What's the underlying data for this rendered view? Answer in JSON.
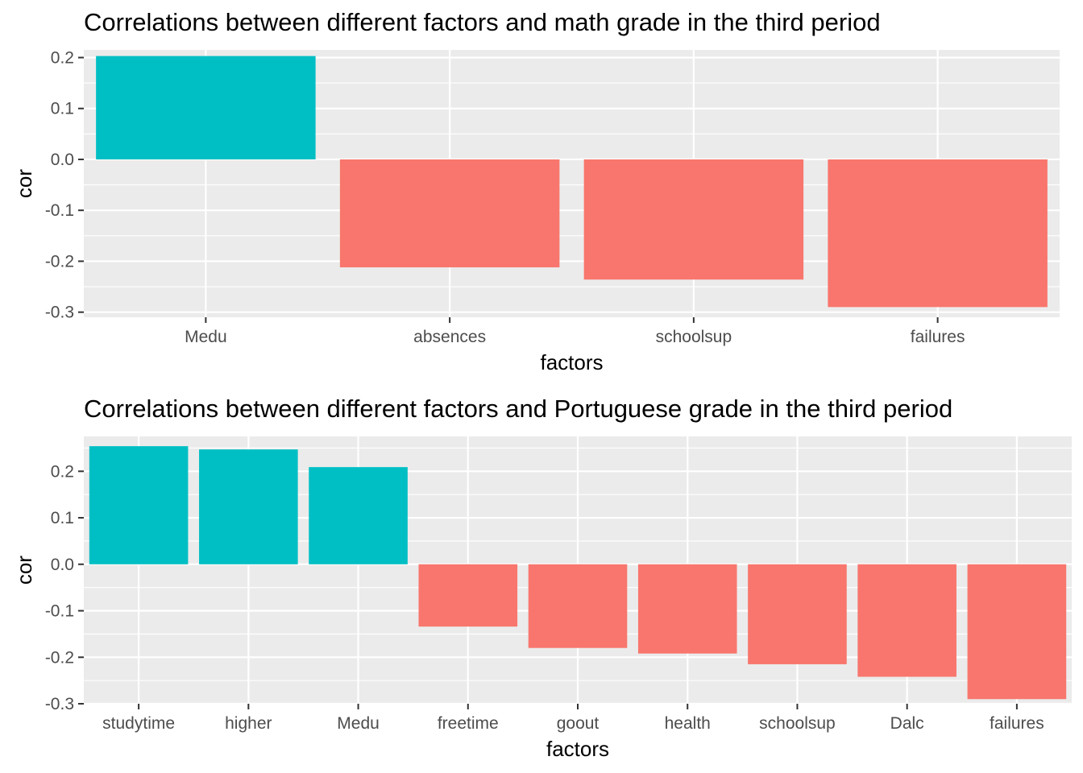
{
  "colors": {
    "positive": "#00BFC4",
    "negative": "#F8766D",
    "panel": "#EBEBEB",
    "grid": "#FFFFFF"
  },
  "chart_data": [
    {
      "type": "bar",
      "title": "Correlations between different factors and math grade in the third period",
      "xlabel": "factors",
      "ylabel": "cor",
      "ylim": [
        -0.31,
        0.215
      ],
      "yticks": [
        -0.3,
        -0.2,
        -0.1,
        0.0,
        0.1,
        0.2
      ],
      "ytick_labels": [
        "-0.3",
        "-0.2",
        "-0.1",
        "0.0",
        "0.1",
        "0.2"
      ],
      "grid": true,
      "legend": "none",
      "categories": [
        "Medu",
        "absences",
        "schoolsup",
        "failures"
      ],
      "values": [
        0.203,
        -0.212,
        -0.236,
        -0.29
      ]
    },
    {
      "type": "bar",
      "title": "Correlations between different factors and Portuguese grade in the third period",
      "xlabel": "factors",
      "ylabel": "cor",
      "ylim": [
        -0.3,
        0.275
      ],
      "yticks": [
        -0.3,
        -0.2,
        -0.1,
        0.0,
        0.1,
        0.2
      ],
      "ytick_labels": [
        "-0.3",
        "-0.2",
        "-0.1",
        "0.0",
        "0.1",
        "0.2"
      ],
      "grid": true,
      "legend": "none",
      "categories": [
        "studytime",
        "higher",
        "Medu",
        "freetime",
        "goout",
        "health",
        "schoolsup",
        "Dalc",
        "failures"
      ],
      "values": [
        0.254,
        0.247,
        0.209,
        -0.134,
        -0.18,
        -0.192,
        -0.215,
        -0.242,
        -0.29
      ]
    }
  ]
}
